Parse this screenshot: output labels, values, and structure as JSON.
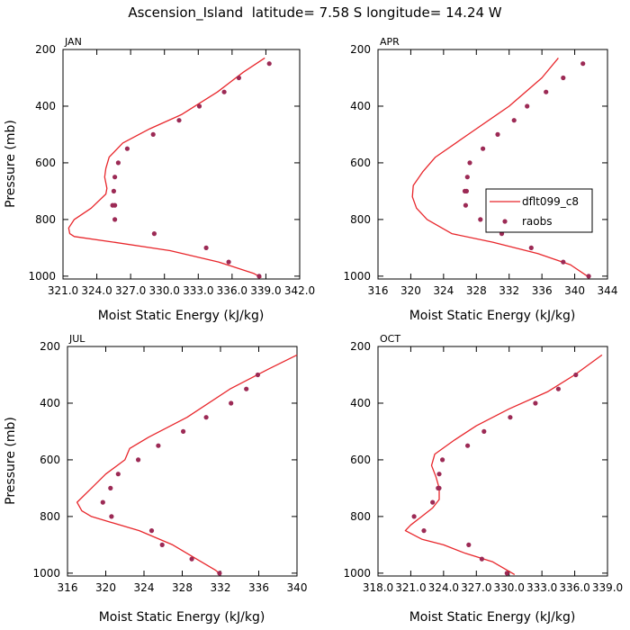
{
  "figure_title": "Ascension_Island  latitude= 7.58 S longitude= 14.24 W",
  "colors": {
    "model": "#e8262b",
    "obs": "#9c2a55",
    "axis": "#000000"
  },
  "legend": {
    "model_label": "dflt099_c8",
    "obs_label": "raobs",
    "placement": "APR panel, right-middle"
  },
  "chart_data": [
    {
      "type": "line",
      "title": "JAN",
      "xlabel": "Moist Static Energy (kJ/kg)",
      "ylabel": "Pressure (mb)",
      "xlim": [
        321.0,
        342.0
      ],
      "ylim": [
        1010,
        200
      ],
      "y_reversed": true,
      "xticks": [
        321.0,
        324.0,
        327.0,
        330.0,
        333.0,
        336.0,
        339.0,
        342.0
      ],
      "xtick_labels": [
        "321.0",
        "324.0",
        "327.0",
        "330.0",
        "333.0",
        "336.0",
        "339.0",
        "342.0"
      ],
      "yticks": [
        200,
        400,
        600,
        800,
        1000
      ],
      "ytick_labels": [
        "200",
        "400",
        "600",
        "800",
        "1000"
      ],
      "series": [
        {
          "kind": "line",
          "x": [
            338.9,
            337.0,
            334.7,
            331.5,
            328.7,
            326.3,
            325.1,
            324.8,
            324.7,
            324.9,
            324.8,
            323.5,
            322.0,
            321.5,
            321.6,
            322.0,
            325.5,
            330.5,
            334.8,
            337.9,
            338.6
          ],
          "y": [
            230,
            280,
            350,
            430,
            480,
            530,
            580,
            620,
            650,
            690,
            710,
            760,
            800,
            830,
            850,
            860,
            880,
            910,
            950,
            990,
            1005
          ]
        },
        {
          "kind": "scatter",
          "x": [
            339.3,
            336.6,
            335.3,
            333.1,
            331.3,
            329.0,
            326.7,
            325.9,
            325.6,
            325.5,
            325.4,
            325.6,
            325.6,
            329.1,
            333.7,
            335.7,
            338.4
          ],
          "y": [
            250,
            300,
            350,
            400,
            450,
            500,
            550,
            600,
            650,
            700,
            750,
            800,
            750,
            850,
            900,
            950,
            1000
          ]
        }
      ]
    },
    {
      "type": "line",
      "title": "APR",
      "xlabel": "Moist Static Energy (kJ/kg)",
      "ylabel": "",
      "xlim": [
        316,
        344
      ],
      "ylim": [
        1010,
        200
      ],
      "y_reversed": true,
      "xticks": [
        316,
        320,
        324,
        328,
        332,
        336,
        340,
        344
      ],
      "xtick_labels": [
        "316",
        "320",
        "324",
        "328",
        "332",
        "336",
        "340",
        "344"
      ],
      "yticks": [
        200,
        400,
        600,
        800,
        1000
      ],
      "ytick_labels": [
        "200",
        "400",
        "600",
        "800",
        "1000"
      ],
      "series": [
        {
          "name": "dflt099_c8",
          "kind": "line",
          "x": [
            338.0,
            336.0,
            332.0,
            327.0,
            323.0,
            321.5,
            320.3,
            320.2,
            320.7,
            322.0,
            325.0,
            330.0,
            335.5,
            339.5,
            341.8
          ],
          "y": [
            230,
            300,
            400,
            500,
            580,
            630,
            680,
            720,
            760,
            800,
            850,
            880,
            920,
            960,
            1005
          ]
        },
        {
          "name": "raobs",
          "kind": "scatter",
          "x": [
            341.0,
            338.6,
            336.5,
            334.2,
            332.6,
            330.6,
            328.8,
            327.2,
            326.9,
            326.8,
            326.6,
            326.7,
            328.5,
            331.1,
            334.7,
            338.6,
            341.7
          ],
          "y": [
            250,
            300,
            350,
            400,
            450,
            500,
            550,
            600,
            650,
            700,
            700,
            750,
            800,
            850,
            900,
            950,
            1000
          ]
        }
      ]
    },
    {
      "type": "line",
      "title": "JUL",
      "xlabel": "Moist Static Energy (kJ/kg)",
      "ylabel": "Pressure (mb)",
      "xlim": [
        316,
        340
      ],
      "ylim": [
        1010,
        200
      ],
      "y_reversed": true,
      "xticks": [
        316,
        320,
        324,
        328,
        332,
        336,
        340
      ],
      "xtick_labels": [
        "316",
        "320",
        "324",
        "328",
        "332",
        "336",
        "340"
      ],
      "yticks": [
        200,
        400,
        600,
        800,
        1000
      ],
      "ytick_labels": [
        "200",
        "400",
        "600",
        "800",
        "1000"
      ],
      "series": [
        {
          "kind": "line",
          "x": [
            340.0,
            337.0,
            333.0,
            328.5,
            324.5,
            322.5,
            322.0,
            320.0,
            318.5,
            317.0,
            317.5,
            318.5,
            320.5,
            323.5,
            327.0,
            330.0,
            331.5,
            332.0
          ],
          "y": [
            230,
            280,
            350,
            450,
            520,
            560,
            600,
            650,
            700,
            750,
            780,
            800,
            820,
            850,
            900,
            960,
            990,
            1005
          ]
        },
        {
          "kind": "scatter",
          "x": [
            335.9,
            334.7,
            333.1,
            330.5,
            328.1,
            325.5,
            323.4,
            321.3,
            320.5,
            319.7,
            320.6,
            324.8,
            325.9,
            329.0,
            331.9
          ],
          "y": [
            300,
            350,
            400,
            450,
            500,
            550,
            600,
            650,
            700,
            750,
            800,
            850,
            900,
            950,
            1000
          ]
        }
      ]
    },
    {
      "type": "line",
      "title": "OCT",
      "xlabel": "Moist Static Energy (kJ/kg)",
      "ylabel": "",
      "xlim": [
        318.0,
        339.0
      ],
      "ylim": [
        1010,
        200
      ],
      "y_reversed": true,
      "xticks": [
        318.0,
        321.0,
        324.0,
        327.0,
        330.0,
        333.0,
        336.0,
        339.0
      ],
      "xtick_labels": [
        "318.0",
        "321.0",
        "324.0",
        "327.0",
        "330.0",
        "333.0",
        "336.0",
        "339.0"
      ],
      "yticks": [
        200,
        400,
        600,
        800,
        1000
      ],
      "ytick_labels": [
        "200",
        "400",
        "600",
        "800",
        "1000"
      ],
      "series": [
        {
          "kind": "line",
          "x": [
            338.5,
            336.0,
            333.5,
            330.0,
            327.0,
            325.0,
            323.2,
            322.9,
            323.3,
            323.6,
            323.6,
            323.0,
            322.0,
            321.0,
            320.5,
            322.0,
            324.0,
            326.0,
            328.5,
            330.5
          ],
          "y": [
            230,
            300,
            360,
            420,
            480,
            530,
            580,
            620,
            660,
            700,
            740,
            770,
            800,
            830,
            850,
            880,
            900,
            930,
            960,
            1005
          ]
        },
        {
          "kind": "scatter",
          "x": [
            336.1,
            334.5,
            332.4,
            330.1,
            327.7,
            326.2,
            323.9,
            323.6,
            323.5,
            323.6,
            323.0,
            321.3,
            322.2,
            326.3,
            327.5,
            329.8
          ],
          "y": [
            300,
            350,
            400,
            450,
            500,
            550,
            600,
            650,
            700,
            700,
            750,
            800,
            850,
            900,
            950,
            1000
          ]
        }
      ]
    }
  ]
}
